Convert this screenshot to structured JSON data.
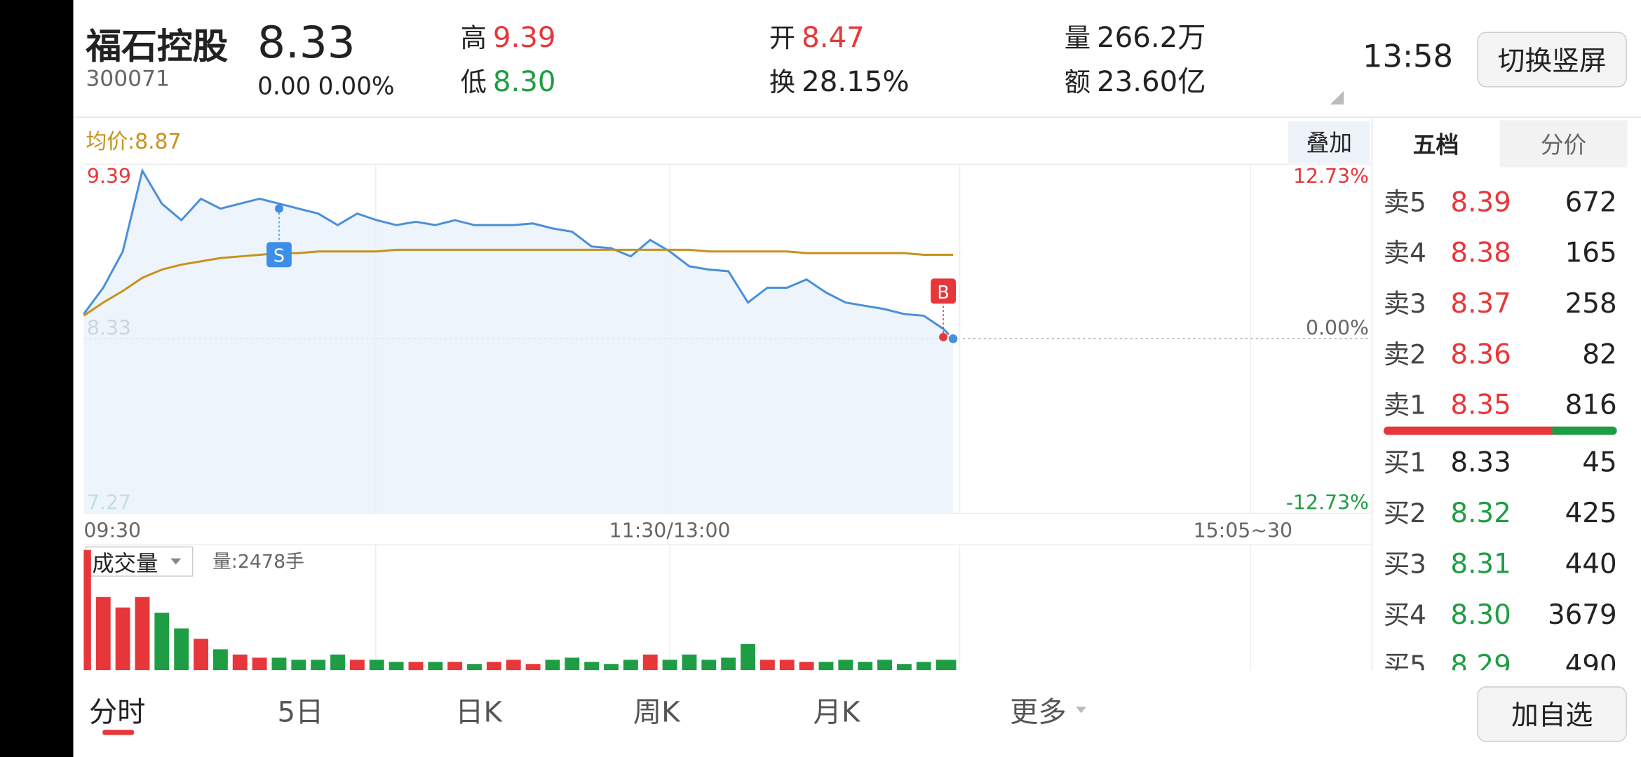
{
  "header": {
    "name": "福石控股",
    "code": "300071",
    "price": "8.33",
    "change": "0.00",
    "change_pct": "0.00%",
    "high_label": "高",
    "high": "9.39",
    "low_label": "低",
    "low": "8.30",
    "open_label": "开",
    "open": "8.47",
    "turnover_label": "换",
    "turnover": "28.15%",
    "volume_label": "量",
    "volume": "266.2万",
    "amount_label": "额",
    "amount": "23.60亿",
    "time": "13:58",
    "rotate_button": "切换竖屏"
  },
  "chart_data": {
    "type": "line",
    "avg_label": "均价:8.87",
    "overlay_button": "叠加",
    "x": [
      "09:30",
      "09:34",
      "09:38",
      "09:42",
      "09:46",
      "09:50",
      "09:54",
      "09:58",
      "10:02",
      "10:06",
      "10:10",
      "10:14",
      "10:18",
      "10:22",
      "10:26",
      "10:30",
      "10:34",
      "10:38",
      "10:42",
      "10:46",
      "10:50",
      "10:54",
      "10:58",
      "11:02",
      "11:06",
      "11:10",
      "11:14",
      "11:18",
      "11:22",
      "11:26",
      "11:30",
      "13:04",
      "13:08",
      "13:12",
      "13:16",
      "13:20",
      "13:24",
      "13:28",
      "13:32",
      "13:36",
      "13:40",
      "13:44",
      "13:48",
      "13:52",
      "13:56",
      "13:58"
    ],
    "series": [
      {
        "color": "#4a8fd8",
        "values": [
          8.48,
          8.64,
          8.86,
          9.35,
          9.15,
          9.05,
          9.18,
          9.12,
          9.15,
          9.18,
          9.15,
          9.12,
          9.09,
          9.02,
          9.09,
          9.05,
          9.02,
          9.04,
          9.02,
          9.05,
          9.02,
          9.02,
          9.02,
          9.03,
          9.0,
          8.98,
          8.89,
          8.88,
          8.83,
          8.93,
          8.86,
          8.77,
          8.75,
          8.74,
          8.55,
          8.64,
          8.64,
          8.69,
          8.61,
          8.55,
          8.53,
          8.51,
          8.48,
          8.47,
          8.39,
          8.33
        ]
      },
      {
        "color": "#c8921a",
        "values": [
          8.47,
          8.55,
          8.62,
          8.7,
          8.75,
          8.78,
          8.8,
          8.82,
          8.83,
          8.84,
          8.85,
          8.85,
          8.86,
          8.86,
          8.86,
          8.86,
          8.87,
          8.87,
          8.87,
          8.87,
          8.87,
          8.87,
          8.87,
          8.87,
          8.87,
          8.87,
          8.87,
          8.87,
          8.87,
          8.87,
          8.87,
          8.87,
          8.86,
          8.86,
          8.86,
          8.86,
          8.86,
          8.85,
          8.85,
          8.85,
          8.85,
          8.85,
          8.85,
          8.84,
          8.84,
          8.84
        ]
      }
    ],
    "ylim": [
      7.27,
      9.39
    ],
    "yticks": [
      7.27,
      8.33,
      9.39
    ],
    "y2lim": [
      -12.73,
      12.73
    ],
    "y2ticks": [
      {
        "value": -12.73,
        "label": "-12.73%"
      },
      {
        "value": 0,
        "label": "0.00%"
      },
      {
        "value": 12.73,
        "label": "12.73%"
      }
    ],
    "x_labels": [
      "09:30",
      "11:30/13:00",
      "15:05~30"
    ],
    "markers": [
      {
        "label": "S",
        "x": "10:10",
        "value": 9.12,
        "side": "below",
        "color": "#3d8ee8"
      },
      {
        "label": "B",
        "x": "13:56",
        "value": 8.34,
        "side": "above",
        "color": "#e8373a"
      }
    ]
  },
  "volume_chart": {
    "type": "bar",
    "indicator": "成交量",
    "readout": "量:2478手",
    "ylim": [
      0,
      30000
    ],
    "values": [
      28750,
      17500,
      15000,
      17500,
      13750,
      10000,
      7500,
      5000,
      3750,
      3000,
      3000,
      2500,
      2500,
      3750,
      2500,
      2500,
      2000,
      2000,
      2000,
      2000,
      1500,
      2000,
      2500,
      1500,
      2500,
      3000,
      2000,
      1500,
      2500,
      3750,
      2500,
      3750,
      2500,
      3000,
      6250,
      2500,
      2500,
      2000,
      2000,
      2500,
      2000,
      2500,
      1500,
      2000,
      2500,
      2478
    ]
  },
  "order_book": {
    "tabs": [
      "五档",
      "分价"
    ],
    "asks": [
      {
        "label": "卖5",
        "price": "8.39",
        "volume": "672"
      },
      {
        "label": "卖4",
        "price": "8.38",
        "volume": "165"
      },
      {
        "label": "卖3",
        "price": "8.37",
        "volume": "258"
      },
      {
        "label": "卖2",
        "price": "8.36",
        "volume": "82"
      },
      {
        "label": "卖1",
        "price": "8.35",
        "volume": "816"
      }
    ],
    "bids": [
      {
        "label": "买1",
        "price": "8.33",
        "volume": "45"
      },
      {
        "label": "买2",
        "price": "8.32",
        "volume": "425"
      },
      {
        "label": "买3",
        "price": "8.31",
        "volume": "440"
      },
      {
        "label": "买4",
        "price": "8.30",
        "volume": "3679"
      },
      {
        "label": "买5",
        "price": "8.29",
        "volume": "490"
      }
    ]
  },
  "bottom_tabs": [
    "分时",
    "5日",
    "日K",
    "周K",
    "月K",
    "更多"
  ],
  "add_button": "加自选"
}
